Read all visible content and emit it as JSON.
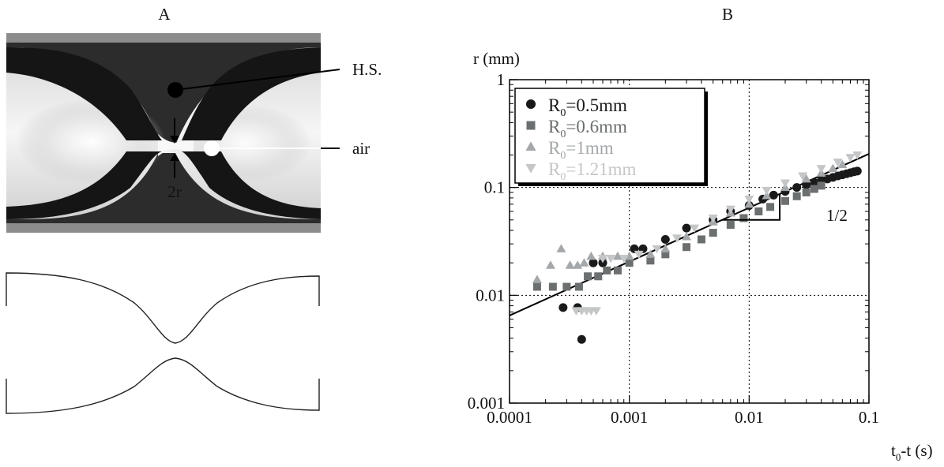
{
  "panels": {
    "a_label": "A",
    "b_label": "B"
  },
  "panel_a": {
    "annotations": {
      "hs": "H.S.",
      "air": "air",
      "neck": "2r"
    }
  },
  "chart_data": {
    "type": "scatter",
    "title": "",
    "xlabel_main": "t",
    "xlabel_sub": "0",
    "xlabel_rest": "-t (s)",
    "ylabel": "r (mm)",
    "xscale": "log",
    "yscale": "log",
    "xlim": [
      0.0001,
      0.1
    ],
    "ylim": [
      0.001,
      1
    ],
    "x_ticks": [
      {
        "value": 0.0001,
        "label": "0.0001"
      },
      {
        "value": 0.001,
        "label": "0.001"
      },
      {
        "value": 0.01,
        "label": "0.01"
      },
      {
        "value": 0.1,
        "label": "0.1"
      }
    ],
    "y_ticks": [
      {
        "value": 0.001,
        "label": "0.001"
      },
      {
        "value": 0.01,
        "label": "0.01"
      },
      {
        "value": 0.1,
        "label": "0.1"
      },
      {
        "value": 1,
        "label": "1"
      }
    ],
    "grid": true,
    "legend_position": "top-left",
    "slope_annotation": "1/2",
    "fit_line": {
      "points": [
        [
          0.0001,
          0.0065
        ],
        [
          0.1,
          0.205
        ]
      ]
    },
    "slope_triangle": {
      "x1": 0.006,
      "x2": 0.018,
      "y_low": 0.05,
      "y_high": 0.087
    },
    "series": [
      {
        "legend_main": "R",
        "legend_sub": "0",
        "legend_rest": "=0.5mm",
        "marker": "circle",
        "color": "#1a1a1a",
        "x": [
          0.00028,
          0.00037,
          0.0004,
          0.0005,
          0.0006,
          0.0011,
          0.0013,
          0.002,
          0.003,
          0.005,
          0.007,
          0.01,
          0.013,
          0.016,
          0.02,
          0.025,
          0.03,
          0.035,
          0.04,
          0.045,
          0.05,
          0.055,
          0.06,
          0.065,
          0.07,
          0.075,
          0.08
        ],
        "y": [
          0.0077,
          0.0077,
          0.0039,
          0.02,
          0.02,
          0.027,
          0.027,
          0.033,
          0.042,
          0.05,
          0.06,
          0.068,
          0.078,
          0.085,
          0.092,
          0.1,
          0.106,
          0.111,
          0.116,
          0.12,
          0.124,
          0.128,
          0.131,
          0.134,
          0.137,
          0.14,
          0.142
        ]
      },
      {
        "legend_main": "R",
        "legend_sub": "0",
        "legend_rest": "=0.6mm",
        "marker": "square",
        "color": "#6b6f70",
        "x": [
          0.00017,
          0.00023,
          0.0003,
          0.00038,
          0.00045,
          0.00055,
          0.00065,
          0.0008,
          0.001,
          0.0015,
          0.002,
          0.003,
          0.004,
          0.005,
          0.007,
          0.009,
          0.012,
          0.015,
          0.02,
          0.025,
          0.03,
          0.035,
          0.04
        ],
        "y": [
          0.012,
          0.012,
          0.012,
          0.012,
          0.015,
          0.015,
          0.017,
          0.017,
          0.02,
          0.021,
          0.024,
          0.028,
          0.033,
          0.038,
          0.045,
          0.052,
          0.06,
          0.066,
          0.075,
          0.083,
          0.09,
          0.097,
          0.104
        ]
      },
      {
        "legend_main": "R",
        "legend_sub": "0",
        "legend_rest": "=1mm",
        "marker": "triangle-up",
        "color": "#a4a8aa",
        "x": [
          0.00017,
          0.00022,
          0.00027,
          0.00032,
          0.00037,
          0.00042,
          0.00048,
          0.0006,
          0.0008,
          0.001,
          0.0015,
          0.002,
          0.003,
          0.005,
          0.007,
          0.01,
          0.014,
          0.02,
          0.03,
          0.04,
          0.05,
          0.06
        ],
        "y": [
          0.014,
          0.019,
          0.027,
          0.019,
          0.019,
          0.02,
          0.023,
          0.023,
          0.023,
          0.023,
          0.024,
          0.027,
          0.035,
          0.048,
          0.058,
          0.07,
          0.084,
          0.1,
          0.12,
          0.136,
          0.15,
          0.163
        ]
      },
      {
        "legend_main": "R",
        "legend_sub": "0",
        "legend_rest": "=1.21mm",
        "marker": "triangle-down",
        "color": "#c4c6c7",
        "x": [
          0.00036,
          0.0004,
          0.00044,
          0.00048,
          0.00053,
          0.0006,
          0.0007,
          0.0009,
          0.0012,
          0.0017,
          0.0025,
          0.0035,
          0.005,
          0.007,
          0.01,
          0.014,
          0.02,
          0.028,
          0.04,
          0.055,
          0.07,
          0.08
        ],
        "y": [
          0.0072,
          0.0072,
          0.0072,
          0.0072,
          0.0072,
          0.022,
          0.022,
          0.022,
          0.024,
          0.027,
          0.034,
          0.042,
          0.052,
          0.063,
          0.078,
          0.094,
          0.11,
          0.128,
          0.15,
          0.172,
          0.19,
          0.2
        ]
      }
    ]
  }
}
